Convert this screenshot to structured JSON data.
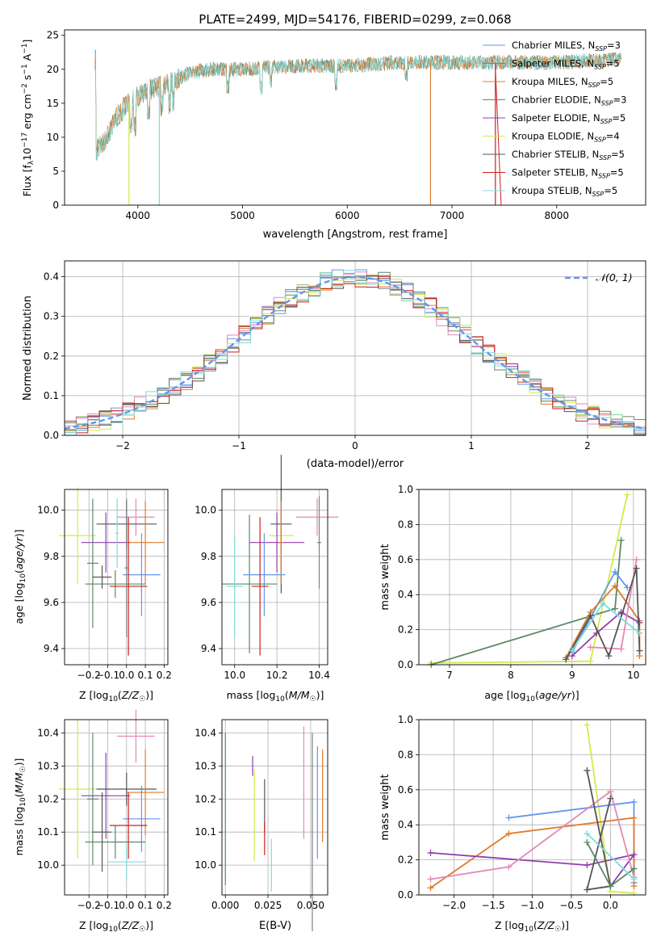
{
  "figure": {
    "title": "PLATE=2499, MJD=54176, FIBERID=0299, z=0.068"
  },
  "colors": {
    "chabrier_miles": "#6495ed",
    "salpeter_miles": "#808080",
    "kroupa_miles": "#e07b2a",
    "chabrier_elodie": "#5a8a68",
    "salpeter_elodie": "#8e3fae",
    "kroupa_elodie": "#d4e94a",
    "chabrier_stelib": "#555555",
    "salpeter_stelib": "#cc1f1f",
    "kroupa_stelib": "#7fdcdc",
    "pink": "#e388b7",
    "dashed_normal": "#6495ed"
  },
  "chart_data": [
    {
      "id": "spectrum",
      "type": "line",
      "title": "PLATE=2499, MJD=54176, FIBERID=0299, z=0.068",
      "xlabel": "wavelength [Angstrom, rest frame]",
      "ylabel": "Flux [fλ10⁻¹⁷ erg cm⁻² s⁻¹ A⁻¹]",
      "xlim": [
        3300,
        8850
      ],
      "ylim": [
        0,
        25.8
      ],
      "xticks": [
        4000,
        5000,
        6000,
        7000,
        8000
      ],
      "yticks": [
        0,
        5,
        10,
        15,
        20,
        25
      ],
      "grid": false,
      "legend_position": "top-right",
      "legend": [
        {
          "label": "Chabrier MILES, N_SSP=3",
          "color": "#6495ed"
        },
        {
          "label": "Salpeter MILES, N_SSP=5",
          "color": "#808080"
        },
        {
          "label": "Kroupa MILES, N_SSP=5",
          "color": "#e07b2a"
        },
        {
          "label": "Chabrier ELODIE, N_SSP=3",
          "color": "#5a8a68"
        },
        {
          "label": "Salpeter ELODIE, N_SSP=5",
          "color": "#8e3fae"
        },
        {
          "label": "Kroupa ELODIE, N_SSP=4",
          "color": "#d4e94a"
        },
        {
          "label": "Chabrier STELIB, N_SSP=5",
          "color": "#555555"
        },
        {
          "label": "Salpeter STELIB, N_SSP=5",
          "color": "#cc1f1f"
        },
        {
          "label": "Kroupa STELIB, N_SSP=5",
          "color": "#7fdcdc"
        }
      ],
      "continuum": {
        "x": [
          3600,
          3700,
          3800,
          3900,
          4000,
          4100,
          4200,
          4300,
          4500,
          4700,
          5000,
          5500,
          6000,
          6500,
          7000,
          7500,
          8000,
          8600
        ],
        "y": [
          8,
          10,
          13,
          15,
          16,
          17,
          17.5,
          18,
          19.5,
          20,
          20,
          20.5,
          20.5,
          21,
          21,
          21,
          21,
          21.5
        ]
      }
    },
    {
      "id": "residuals",
      "type": "step",
      "xlabel": "(data-model)/error",
      "ylabel": "Normed distribution",
      "xlim": [
        -2.5,
        2.5
      ],
      "ylim": [
        0,
        0.44
      ],
      "xticks": [
        -2,
        -1,
        0,
        1,
        2
      ],
      "yticks": [
        0.0,
        0.1,
        0.2,
        0.3,
        0.4
      ],
      "grid": true,
      "legend_position": "top-right",
      "legend": [
        {
          "label": "𝒩(0, 1)",
          "style": "dashed"
        }
      ],
      "bin_width": 0.1
    },
    {
      "id": "age_vs_Z",
      "type": "errorbar",
      "xlabel": "Z [log10(Z/Z☉)]",
      "ylabel": "age [log10(age/yr)]",
      "xlim": [
        -0.33,
        0.22
      ],
      "ylim": [
        9.33,
        10.09
      ],
      "xticks": [
        -0.2,
        -0.1,
        0.0,
        0.1,
        0.2
      ],
      "yticks": [
        9.4,
        9.6,
        9.8,
        10.0
      ],
      "grid": true,
      "points": [
        {
          "series": "Kroupa ELODIE",
          "x": -0.26,
          "xerr": 0.1,
          "y": 9.89,
          "yerr": 0.21
        },
        {
          "series": "Salpeter ELODIE",
          "x": -0.11,
          "xerr": 0.13,
          "y": 9.86,
          "yerr": 0.13
        },
        {
          "series": "Chabrier ELODIE",
          "x": -0.18,
          "xerr": 0.03,
          "y": 9.77,
          "yerr": 0.28
        },
        {
          "series": "Chabrier STELIB",
          "x": -0.13,
          "xerr": 0.05,
          "y": 9.71,
          "yerr": 0.05
        },
        {
          "series": "Pink",
          "x": 0.05,
          "xerr": 0.1,
          "y": 9.97,
          "yerr": 0.08
        },
        {
          "series": "Chabrier STELIB",
          "x": 0.0,
          "xerr": 0.16,
          "y": 9.94,
          "yerr": 0.1
        },
        {
          "series": "Kroupa MILES",
          "x": 0.1,
          "xerr": 0.1,
          "y": 9.86,
          "yerr": 0.18
        },
        {
          "series": "Chabrier ELODIE",
          "x": -0.06,
          "xerr": 0.16,
          "y": 9.68,
          "yerr": 0.06
        },
        {
          "series": "Chabrier MILES",
          "x": 0.08,
          "xerr": 0.1,
          "y": 9.72,
          "yerr": 0.18
        },
        {
          "series": "Salpeter STELIB",
          "x": 0.01,
          "xerr": 0.1,
          "y": 9.67,
          "yerr": 0.3
        },
        {
          "series": "Salpeter MILES",
          "x": 0.0,
          "xerr": 0.01,
          "y": 9.75,
          "yerr": 0.3
        },
        {
          "series": "Kroupa STELIB",
          "x": -0.05,
          "xerr": 0.01,
          "y": 9.9,
          "yerr": 0.15
        }
      ]
    },
    {
      "id": "age_vs_mass",
      "type": "errorbar",
      "xlabel": "mass [log10(M/M☉)]",
      "ylabel": "",
      "xlim": [
        9.94,
        10.44
      ],
      "ylim": [
        9.33,
        10.09
      ],
      "xticks": [
        10.0,
        10.2,
        10.4
      ],
      "yticks": [
        9.4,
        9.6,
        9.8,
        10.0
      ],
      "grid": true,
      "points": [
        {
          "series": "Kroupa ELODIE",
          "x": 10.22,
          "xerr": 0.06,
          "y": 9.89,
          "yerr": 0.21
        },
        {
          "series": "Salpeter ELODIE",
          "x": 10.2,
          "xerr": 0.13,
          "y": 9.86,
          "yerr": 0.13
        },
        {
          "series": "Chabrier ELODIE",
          "x": 10.07,
          "xerr": 0.13,
          "y": 9.68,
          "yerr": 0.3
        },
        {
          "series": "Chabrier STELIB",
          "x": 10.22,
          "xerr": 0.05,
          "y": 9.94,
          "yerr": 0.3
        },
        {
          "series": "Pink",
          "x": 10.39,
          "xerr": 0.1,
          "y": 9.97,
          "yerr": 0.08
        },
        {
          "series": "Kroupa MILES",
          "x": 10.22,
          "xerr": 0.01,
          "y": 9.86,
          "yerr": 0.18
        },
        {
          "series": "Chabrier MILES",
          "x": 10.14,
          "xerr": 0.1,
          "y": 9.72,
          "yerr": 0.18
        },
        {
          "series": "Salpeter STELIB",
          "x": 10.12,
          "xerr": 0.04,
          "y": 9.67,
          "yerr": 0.3
        },
        {
          "series": "Kroupa STELIB",
          "x": 10.0,
          "xerr": 0.04,
          "y": 9.67,
          "yerr": 0.22
        },
        {
          "series": "Salpeter MILES",
          "x": 10.4,
          "xerr": 0.01,
          "y": 9.86,
          "yerr": 0.2
        }
      ]
    },
    {
      "id": "weight_vs_age",
      "type": "line",
      "xlabel": "age [log10(age/yr)]",
      "ylabel": "mass weight",
      "xlim": [
        6.5,
        10.2
      ],
      "ylim": [
        0,
        1.0
      ],
      "xticks": [
        7,
        8,
        9,
        10
      ],
      "yticks": [
        0.0,
        0.2,
        0.4,
        0.6,
        0.8,
        1.0
      ],
      "grid": true,
      "series": [
        {
          "name": "Kroupa ELODIE",
          "color": "#d4e94a",
          "x": [
            6.7,
            9.3,
            9.9
          ],
          "y": [
            0.01,
            0.02,
            0.97
          ]
        },
        {
          "name": "Chabrier ELODIE",
          "color": "#5a8a68",
          "x": [
            6.7,
            9.7,
            9.8
          ],
          "y": [
            0.0,
            0.32,
            0.71
          ]
        },
        {
          "name": "Chabrier MILES",
          "color": "#6495ed",
          "x": [
            9.0,
            9.7,
            9.9
          ],
          "y": [
            0.07,
            0.53,
            0.44
          ]
        },
        {
          "name": "Kroupa MILES",
          "color": "#e07b2a",
          "x": [
            8.9,
            9.3,
            9.7,
            10.1,
            10.1
          ],
          "y": [
            0.04,
            0.3,
            0.45,
            0.25,
            0.05
          ]
        },
        {
          "name": "Salpeter ELODIE",
          "color": "#8e3fae",
          "x": [
            9.0,
            9.4,
            9.8,
            10.1
          ],
          "y": [
            0.05,
            0.18,
            0.3,
            0.24
          ]
        },
        {
          "name": "Pink",
          "color": "#e388b7",
          "x": [
            9.3,
            9.8,
            10.05
          ],
          "y": [
            0.1,
            0.09,
            0.6
          ]
        },
        {
          "name": "Chabrier STELIB",
          "color": "#555555",
          "x": [
            8.9,
            9.3,
            9.6,
            10.05,
            10.1
          ],
          "y": [
            0.03,
            0.28,
            0.05,
            0.55,
            0.08
          ]
        },
        {
          "name": "Kroupa STELIB",
          "color": "#7fdcdc",
          "x": [
            9.0,
            9.5,
            10.1
          ],
          "y": [
            0.08,
            0.35,
            0.18
          ]
        }
      ]
    },
    {
      "id": "mass_vs_Z",
      "type": "errorbar",
      "xlabel": "Z [log10(Z/Z☉)]",
      "ylabel": "mass [log10(M/M☉)]",
      "xlim": [
        -0.33,
        0.22
      ],
      "ylim": [
        9.91,
        10.44
      ],
      "xticks": [
        -0.2,
        -0.1,
        0.0,
        0.1,
        0.2
      ],
      "yticks": [
        10.0,
        10.1,
        10.2,
        10.3,
        10.4
      ],
      "grid": true,
      "points": [
        {
          "series": "Kroupa ELODIE",
          "x": -0.26,
          "xerr": 0.1,
          "y": 10.23,
          "yerr": 0.21
        },
        {
          "series": "Salpeter ELODIE",
          "x": -0.11,
          "xerr": 0.13,
          "y": 10.21,
          "yerr": 0.13
        },
        {
          "series": "Chabrier ELODIE",
          "x": -0.18,
          "xerr": 0.03,
          "y": 10.2,
          "yerr": 0.2
        },
        {
          "series": "Chabrier STELIB",
          "x": -0.13,
          "xerr": 0.05,
          "y": 10.1,
          "yerr": 0.12
        },
        {
          "series": "Pink",
          "x": 0.05,
          "xerr": 0.1,
          "y": 10.39,
          "yerr": 0.08
        },
        {
          "series": "Chabrier STELIB",
          "x": 0.0,
          "xerr": 0.16,
          "y": 10.23,
          "yerr": 0.05
        },
        {
          "series": "Kroupa MILES",
          "x": 0.1,
          "xerr": 0.1,
          "y": 10.22,
          "yerr": 0.13
        },
        {
          "series": "Chabrier ELODIE",
          "x": -0.06,
          "xerr": 0.16,
          "y": 10.07,
          "yerr": 0.05
        },
        {
          "series": "Chabrier MILES",
          "x": 0.08,
          "xerr": 0.1,
          "y": 10.14,
          "yerr": 0.1
        },
        {
          "series": "Salpeter STELIB",
          "x": 0.01,
          "xerr": 0.1,
          "y": 10.12,
          "yerr": 0.1
        },
        {
          "series": "Kroupa STELIB",
          "x": 0.0,
          "xerr": 0.1,
          "y": 10.01,
          "yerr": 0.05
        }
      ]
    },
    {
      "id": "mass_vs_ebv",
      "type": "errorbar",
      "xlabel": "E(B-V)",
      "ylabel": "",
      "xlim": [
        -0.002,
        0.06
      ],
      "ylim": [
        9.91,
        10.44
      ],
      "xticks": [
        0.0,
        0.025,
        0.05
      ],
      "yticks": [
        10.0,
        10.1,
        10.2,
        10.3,
        10.4
      ],
      "grid": true,
      "points": [
        {
          "series": "Chabrier ELODIE",
          "x": 0.0,
          "xerr": 0.0,
          "y": 10.17,
          "yerr": 0.23
        },
        {
          "series": "Salpeter ELODIE",
          "x": 0.016,
          "xerr": 0.0,
          "y": 10.3,
          "yerr": 0.03
        },
        {
          "series": "Kroupa ELODIE",
          "x": 0.017,
          "xerr": 0.0,
          "y": 10.15,
          "yerr": 0.14
        },
        {
          "series": "Chabrier STELIB",
          "x": 0.023,
          "xerr": 0.0,
          "y": 10.18,
          "yerr": 0.08
        },
        {
          "series": "Salpeter STELIB",
          "x": 0.023,
          "xerr": 0.0,
          "y": 10.08,
          "yerr": 0.05
        },
        {
          "series": "Kroupa STELIB",
          "x": 0.027,
          "xerr": 0.0,
          "y": 10.0,
          "yerr": 0.08
        },
        {
          "series": "Pink",
          "x": 0.046,
          "xerr": 0.0,
          "y": 10.25,
          "yerr": 0.17
        },
        {
          "series": "Chabrier MILES",
          "x": 0.054,
          "xerr": 0.0,
          "y": 10.19,
          "yerr": 0.17
        },
        {
          "series": "Kroupa MILES",
          "x": 0.057,
          "xerr": 0.0,
          "y": 10.21,
          "yerr": 0.14
        },
        {
          "series": "Salpeter MILES",
          "x": 0.051,
          "xerr": 0.0,
          "y": 10.1,
          "yerr": 0.3
        }
      ]
    },
    {
      "id": "weight_vs_Z",
      "type": "line",
      "xlabel": "Z [log10(Z/Z☉)]",
      "ylabel": "mass weight",
      "xlim": [
        -2.45,
        0.45
      ],
      "ylim": [
        0,
        1.0
      ],
      "xticks": [
        -2.0,
        -1.5,
        -1.0,
        -0.5,
        0.0
      ],
      "yticks": [
        0.0,
        0.2,
        0.4,
        0.6,
        0.8,
        1.0
      ],
      "grid": true,
      "series": [
        {
          "name": "Kroupa ELODIE",
          "color": "#d4e94a",
          "x": [
            -0.3,
            0.0,
            0.3
          ],
          "y": [
            0.97,
            0.02,
            0.01
          ]
        },
        {
          "name": "Chabrier MILES",
          "color": "#6495ed",
          "x": [
            -1.3,
            0.3,
            0.3
          ],
          "y": [
            0.44,
            0.53,
            0.07
          ]
        },
        {
          "name": "Kroupa MILES",
          "color": "#e07b2a",
          "x": [
            -2.3,
            -1.3,
            0.3,
            0.3
          ],
          "y": [
            0.04,
            0.35,
            0.44,
            0.05
          ]
        },
        {
          "name": "Salpeter ELODIE",
          "color": "#8e3fae",
          "x": [
            -2.3,
            -0.3,
            0.3,
            0.0
          ],
          "y": [
            0.24,
            0.17,
            0.23,
            0.05
          ]
        },
        {
          "name": "Pink",
          "color": "#e388b7",
          "x": [
            -2.3,
            -1.3,
            0.0,
            0.3
          ],
          "y": [
            0.09,
            0.16,
            0.59,
            0.1
          ]
        },
        {
          "name": "Chabrier STELIB",
          "color": "#555555",
          "x": [
            -0.3,
            0.0,
            -0.3,
            0.0
          ],
          "y": [
            0.71,
            0.05,
            0.03,
            0.55
          ]
        },
        {
          "name": "Chabrier ELODIE",
          "color": "#5a8a68",
          "x": [
            -0.3,
            0.0,
            0.3
          ],
          "y": [
            0.3,
            0.05,
            0.15
          ]
        },
        {
          "name": "Kroupa STELIB",
          "color": "#7fdcdc",
          "x": [
            -0.3,
            0.3
          ],
          "y": [
            0.35,
            0.09
          ]
        }
      ]
    }
  ]
}
